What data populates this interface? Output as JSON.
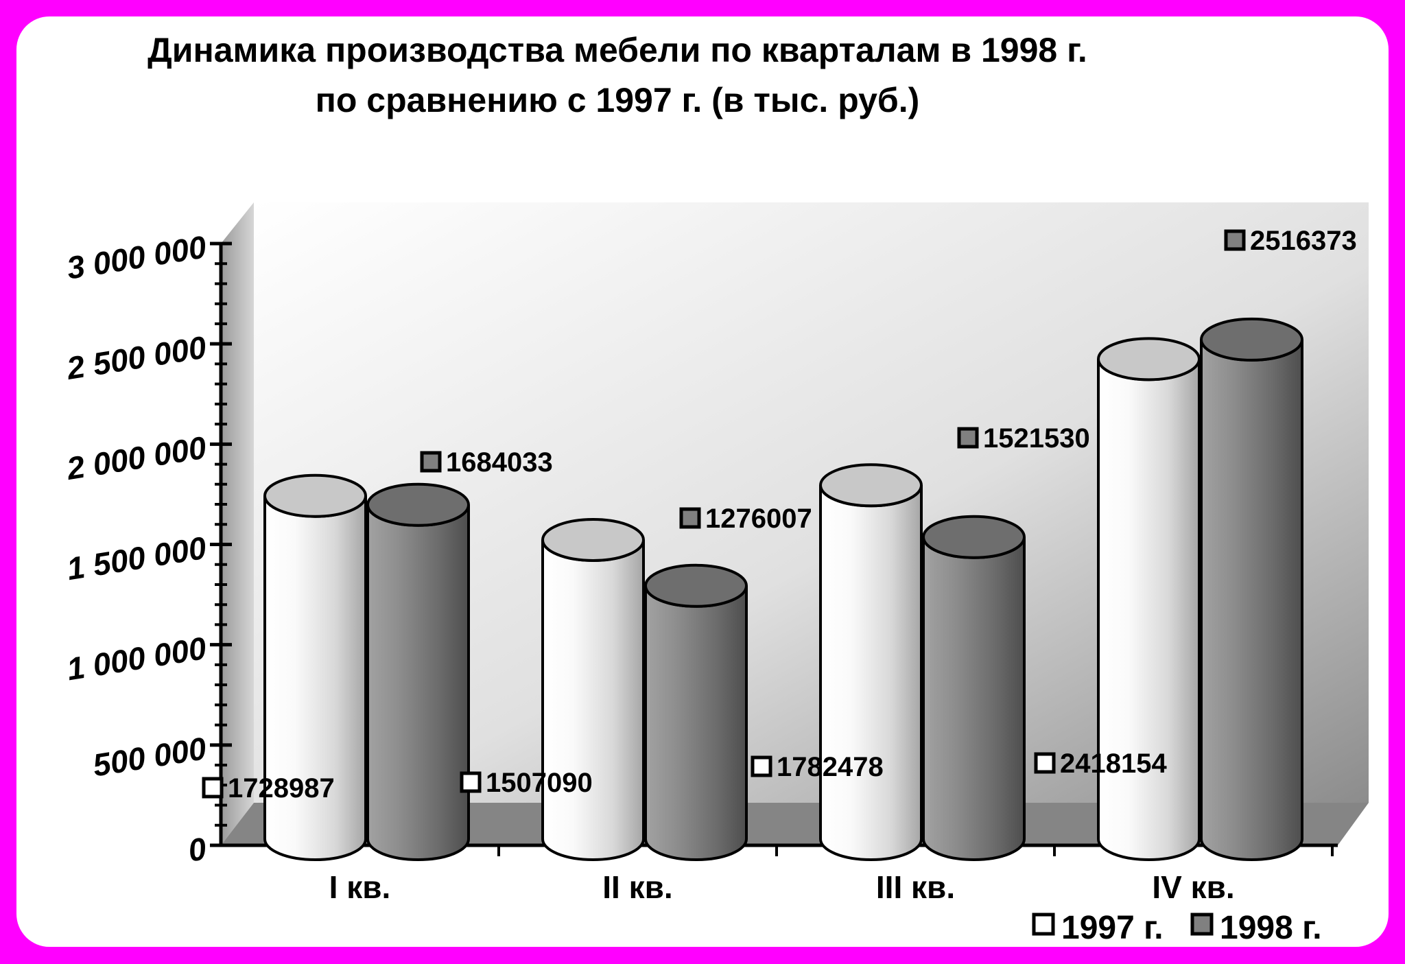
{
  "chart_data": {
    "type": "bar",
    "style": "3d-cylinder",
    "title": "Динамика производства мебели по кварталам в 1998 г.",
    "subtitle": "по сравнению с 1997 г. (в тыс. руб.)",
    "categories": [
      "I кв.",
      "II кв.",
      "III кв.",
      "IV кв."
    ],
    "series": [
      {
        "name": "1997 г.",
        "values": [
          1728987,
          1507090,
          1782478,
          2418154
        ],
        "color": "#e8e8e8",
        "value_labels": [
          "1728987",
          "1507090",
          "1782478",
          "2418154"
        ]
      },
      {
        "name": "1998 г.",
        "values": [
          1684033,
          1276007,
          1521530,
          2516373
        ],
        "color": "#7a7a7a",
        "value_labels": [
          "1684033",
          "1276007",
          "1521530",
          "2516373"
        ]
      }
    ],
    "ylim": [
      0,
      3000000
    ],
    "y_ticks": [
      0,
      500000,
      1000000,
      1500000,
      2000000,
      2500000,
      3000000
    ],
    "y_tick_labels": [
      "0",
      "500 000",
      "1 000 000",
      "1 500 000",
      "2 000 000",
      "2 500 000",
      "3 000 000"
    ],
    "grid": false,
    "legend": "bottom-right",
    "colors": {
      "frame": "#ff00ff",
      "background": "#ffffff"
    }
  }
}
